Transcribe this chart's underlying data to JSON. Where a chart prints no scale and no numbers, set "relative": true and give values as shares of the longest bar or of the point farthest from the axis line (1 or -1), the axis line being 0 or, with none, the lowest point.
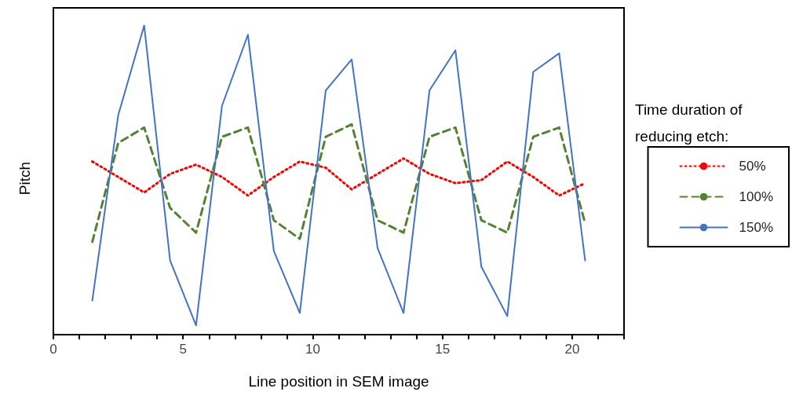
{
  "chart_data": {
    "type": "line",
    "relative": true,
    "xlabel": "Line position in SEM image",
    "ylabel": "Pitch",
    "legend_title": "Time duration of reducing etch:",
    "legend": "right",
    "grid": false,
    "marker": "none",
    "x": [
      1.5,
      2.5,
      3.5,
      4.5,
      5.5,
      6.5,
      7.5,
      8.5,
      9.5,
      10.5,
      11.5,
      12.5,
      13.5,
      14.5,
      15.5,
      16.5,
      17.5,
      18.5,
      19.5,
      20.5
    ],
    "xlim": [
      0,
      22
    ],
    "xticks": [
      0,
      {
        "value": 1,
        "label": null
      },
      {
        "value": 2,
        "label": null
      },
      {
        "value": 3,
        "label": null
      },
      {
        "value": 4,
        "label": null
      },
      5,
      {
        "value": 6,
        "label": null
      },
      {
        "value": 7,
        "label": null
      },
      {
        "value": 8,
        "label": null
      },
      {
        "value": 9,
        "label": null
      },
      10,
      {
        "value": 11,
        "label": null
      },
      {
        "value": 12,
        "label": null
      },
      {
        "value": 13,
        "label": null
      },
      {
        "value": 14,
        "label": null
      },
      15,
      {
        "value": 16,
        "label": null
      },
      {
        "value": 17,
        "label": null
      },
      {
        "value": 18,
        "label": null
      },
      {
        "value": 19,
        "label": null
      },
      20,
      {
        "value": 21,
        "label": null
      },
      {
        "value": 22,
        "label": null
      }
    ],
    "series": [
      {
        "name": "50%",
        "color": "#ff0000",
        "line_style": "dotted",
        "values": [
          0.56,
          0.51,
          0.46,
          0.52,
          0.55,
          0.51,
          0.45,
          0.51,
          0.56,
          0.54,
          0.47,
          0.52,
          0.57,
          0.52,
          0.49,
          0.5,
          0.56,
          0.51,
          0.45,
          0.49
        ]
      },
      {
        "name": "100%",
        "color": "#548235",
        "line_style": "dashed",
        "values": [
          0.3,
          0.62,
          0.67,
          0.41,
          0.33,
          0.64,
          0.67,
          0.37,
          0.31,
          0.64,
          0.68,
          0.37,
          0.33,
          0.64,
          0.67,
          0.37,
          0.33,
          0.64,
          0.67,
          0.36
        ]
      },
      {
        "name": "150%",
        "color": "#4472c4",
        "line_style": "solid",
        "values": [
          0.11,
          0.71,
          1,
          0.24,
          0.03,
          0.74,
          0.97,
          0.27,
          0.07,
          0.79,
          0.89,
          0.28,
          0.07,
          0.79,
          0.92,
          0.22,
          0.06,
          0.85,
          0.91,
          0.24
        ]
      }
    ]
  }
}
